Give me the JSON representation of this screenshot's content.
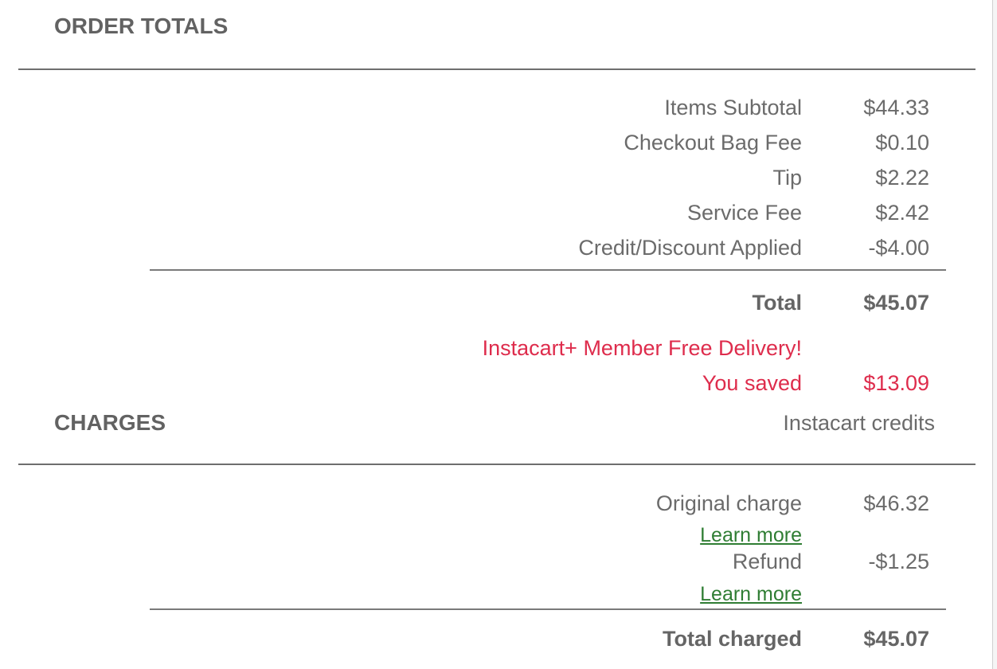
{
  "colors": {
    "text_gray": "#6b6b6b",
    "heading_gray": "#626262",
    "promo_red": "#de2c4c",
    "link_green": "#2f7d33",
    "divider_gray": "#6e6e6e"
  },
  "order_totals": {
    "title": "ORDER TOTALS",
    "rows": [
      {
        "label": "Items Subtotal",
        "value": "$44.33"
      },
      {
        "label": "Checkout Bag Fee",
        "value": "$0.10"
      },
      {
        "label": "Tip",
        "value": "$2.22"
      },
      {
        "label": "Service Fee",
        "value": "$2.42"
      },
      {
        "label": "Credit/Discount Applied",
        "value": "-$4.00"
      }
    ],
    "total": {
      "label": "Total",
      "value": "$45.07"
    },
    "promo": {
      "message": "Instacart+ Member Free Delivery!",
      "saved_label": "You saved",
      "saved_value": "$13.09"
    }
  },
  "charges": {
    "title": "CHARGES",
    "payment_method": "Instacart credits",
    "rows": [
      {
        "label": "Original charge",
        "value": "$46.32",
        "link": "Learn more"
      },
      {
        "label": "Refund",
        "value": "-$1.25",
        "link": "Learn more"
      }
    ],
    "total": {
      "label": "Total charged",
      "value": "$45.07"
    }
  }
}
